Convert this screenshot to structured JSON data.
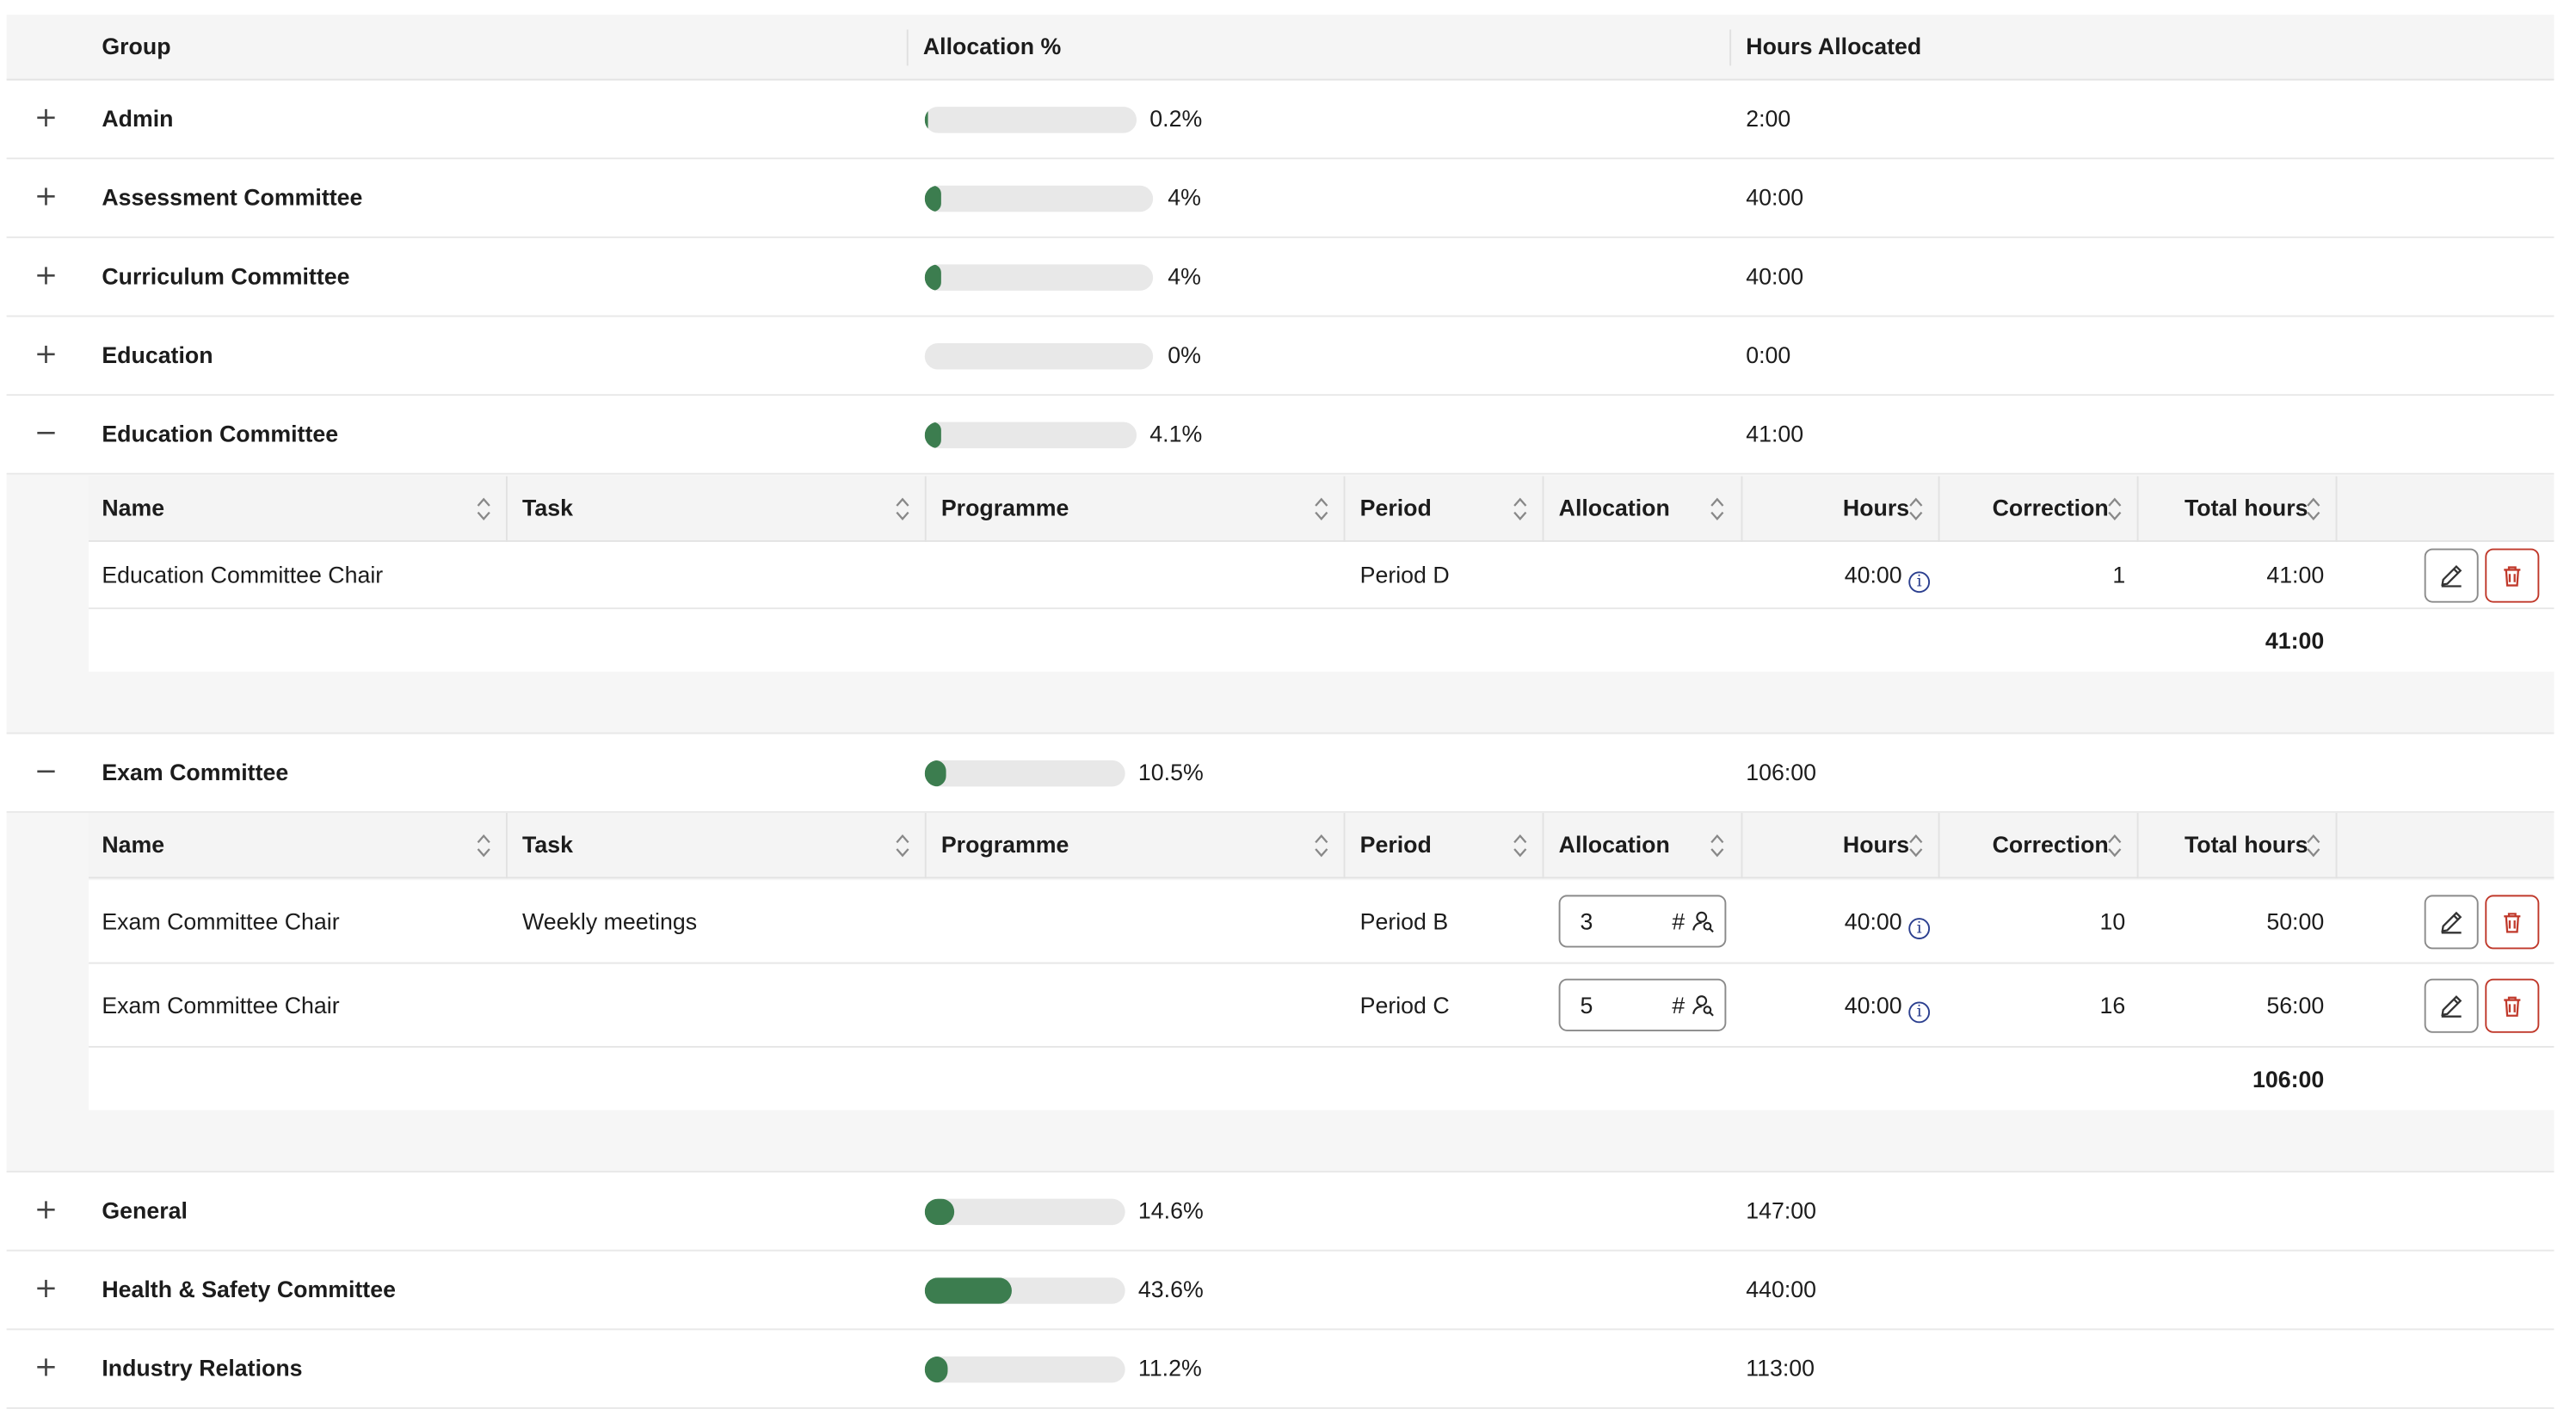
{
  "columns": {
    "group": "Group",
    "allocation": "Allocation %",
    "hours": "Hours Allocated"
  },
  "sub_columns": {
    "name": "Name",
    "task": "Task",
    "programme": "Programme",
    "period": "Period",
    "allocation": "Allocation",
    "hours": "Hours",
    "correction": "Correction",
    "total_hours": "Total hours"
  },
  "groups": [
    {
      "name": "Admin",
      "toggle": "+",
      "pct_label": "0.2%",
      "pct": 0.2,
      "hours": "2:00"
    },
    {
      "name": "Assessment Committee",
      "toggle": "+",
      "pct_label": "4%",
      "pct": 4,
      "hours": "40:00"
    },
    {
      "name": "Curriculum Committee",
      "toggle": "+",
      "pct_label": "4%",
      "pct": 4,
      "hours": "40:00"
    },
    {
      "name": "Education",
      "toggle": "+",
      "pct_label": "0%",
      "pct": 0,
      "hours": "0:00"
    },
    {
      "name": "Education Committee",
      "toggle": "−",
      "pct_label": "4.1%",
      "pct": 4.1,
      "hours": "41:00",
      "rows": [
        {
          "name": "Education Committee Chair",
          "task": "",
          "programme": "",
          "period": "Period D",
          "allocation": "",
          "hours": "40:00",
          "correction": "1",
          "total": "41:00"
        }
      ],
      "total": "41:00"
    },
    {
      "name": "Exam Committee",
      "toggle": "−",
      "pct_label": "10.5%",
      "pct": 10.5,
      "hours": "106:00",
      "rows": [
        {
          "name": "Exam Committee Chair",
          "task": "Weekly meetings",
          "programme": "",
          "period": "Period B",
          "allocation": "3",
          "alloc_unit": "#",
          "hours": "40:00",
          "correction": "10",
          "total": "50:00"
        },
        {
          "name": "Exam Committee Chair",
          "task": "",
          "programme": "",
          "period": "Period C",
          "allocation": "5",
          "alloc_unit": "#",
          "hours": "40:00",
          "correction": "16",
          "total": "56:00"
        }
      ],
      "total": "106:00"
    },
    {
      "name": "General",
      "toggle": "+",
      "pct_label": "14.6%",
      "pct": 14.6,
      "hours": "147:00"
    },
    {
      "name": "Health & Safety Committee",
      "toggle": "+",
      "pct_label": "43.6%",
      "pct": 43.6,
      "hours": "440:00"
    },
    {
      "name": "Industry Relations",
      "toggle": "+",
      "pct_label": "11.2%",
      "pct": 11.2,
      "hours": "113:00"
    }
  ],
  "colors": {
    "bar_fill": "#3c7d4f",
    "bar_track": "#e8e8e8",
    "delete": "#c0392b",
    "info": "#2b3f8f"
  },
  "icons": {
    "expand": "plus-icon",
    "collapse": "minus-icon",
    "sort": "sort-icon",
    "info": "info-icon",
    "edit": "pencil-icon",
    "delete": "trash-icon",
    "person": "person-search-icon"
  }
}
